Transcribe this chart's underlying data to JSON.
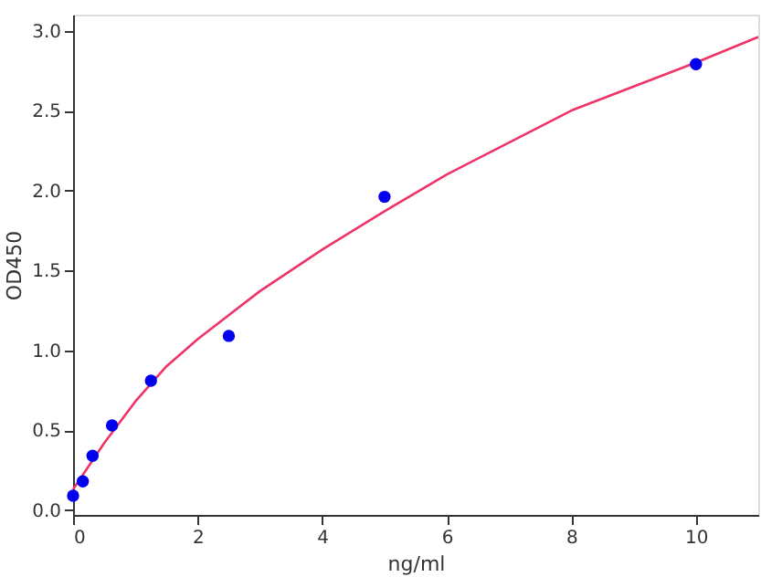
{
  "chart_data": {
    "type": "scatter",
    "xlabel": "ng/ml",
    "ylabel": "OD450",
    "xlim": [
      0,
      11
    ],
    "ylim": [
      -0.03,
      3.1
    ],
    "xticks": [
      0,
      2,
      4,
      6,
      8,
      10
    ],
    "yticks": [
      {
        "value": 0,
        "label": "0.0"
      },
      0.5,
      {
        "value": 1,
        "label": "1.0"
      },
      1.5,
      {
        "value": 2,
        "label": "2.0"
      },
      2.5,
      {
        "value": 3,
        "label": "3.0"
      }
    ],
    "grid": false,
    "series": [
      {
        "type": "line",
        "color": "#ee3366",
        "line_style": "solid",
        "marker": "none",
        "x": [
          0,
          0.5,
          1,
          1.5,
          2,
          3,
          4,
          5,
          6,
          7,
          8,
          9,
          10,
          11
        ],
        "values": [
          0.13,
          0.42,
          0.68,
          0.9,
          1.07,
          1.37,
          1.63,
          1.87,
          2.1,
          2.3,
          2.5,
          2.65,
          2.8,
          2.96
        ]
      },
      {
        "color": "#0000ee",
        "marker": "circle",
        "x": [
          0,
          0.156,
          0.3125,
          0.625,
          1.25,
          2.5,
          5,
          10
        ],
        "values": [
          0.09,
          0.18,
          0.34,
          0.53,
          0.81,
          1.09,
          1.96,
          2.79
        ]
      }
    ]
  }
}
